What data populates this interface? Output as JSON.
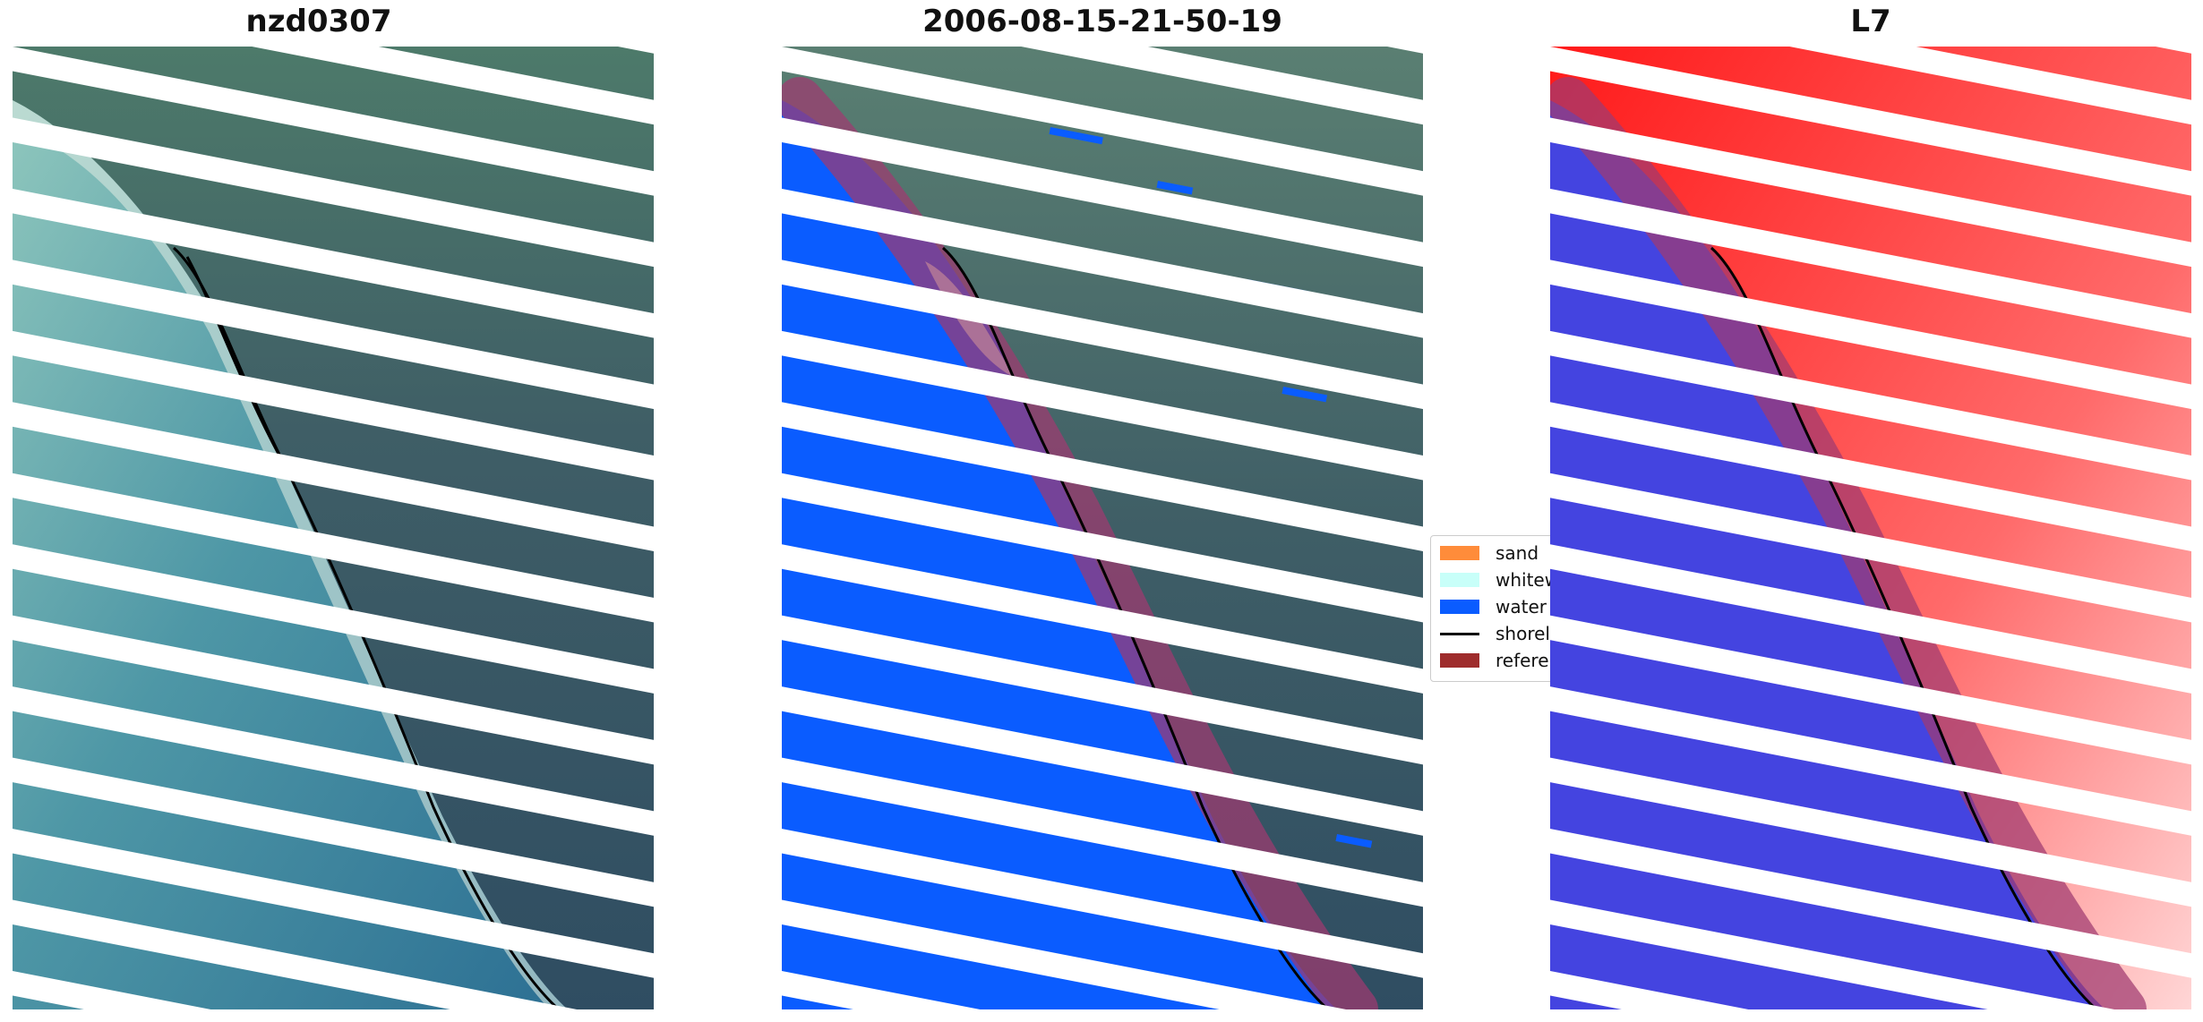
{
  "panels": [
    {
      "title": "nzd0307",
      "kind": "rgb"
    },
    {
      "title": "2006-08-15-21-50-19",
      "kind": "classified"
    },
    {
      "title": "L7",
      "kind": "index"
    }
  ],
  "legend": {
    "items": [
      {
        "label": "sand",
        "color": "#ff8c3a",
        "shape": "patch"
      },
      {
        "label": "whitewater",
        "color": "#c8fff9",
        "shape": "patch"
      },
      {
        "label": "water",
        "color": "#0a5cff",
        "shape": "patch"
      },
      {
        "label": "shoreline",
        "color": "#000000",
        "shape": "line"
      },
      {
        "label": "reference shoreline buffer",
        "color": "#9e2b2b",
        "shape": "patch"
      }
    ]
  },
  "colors": {
    "ocean": "#3f8ba0",
    "land": "#3e5a68",
    "water_class": "#0a5cff",
    "buffer": "#a03a70",
    "index_land": "#ff2020",
    "index_water": "#4040e0"
  }
}
